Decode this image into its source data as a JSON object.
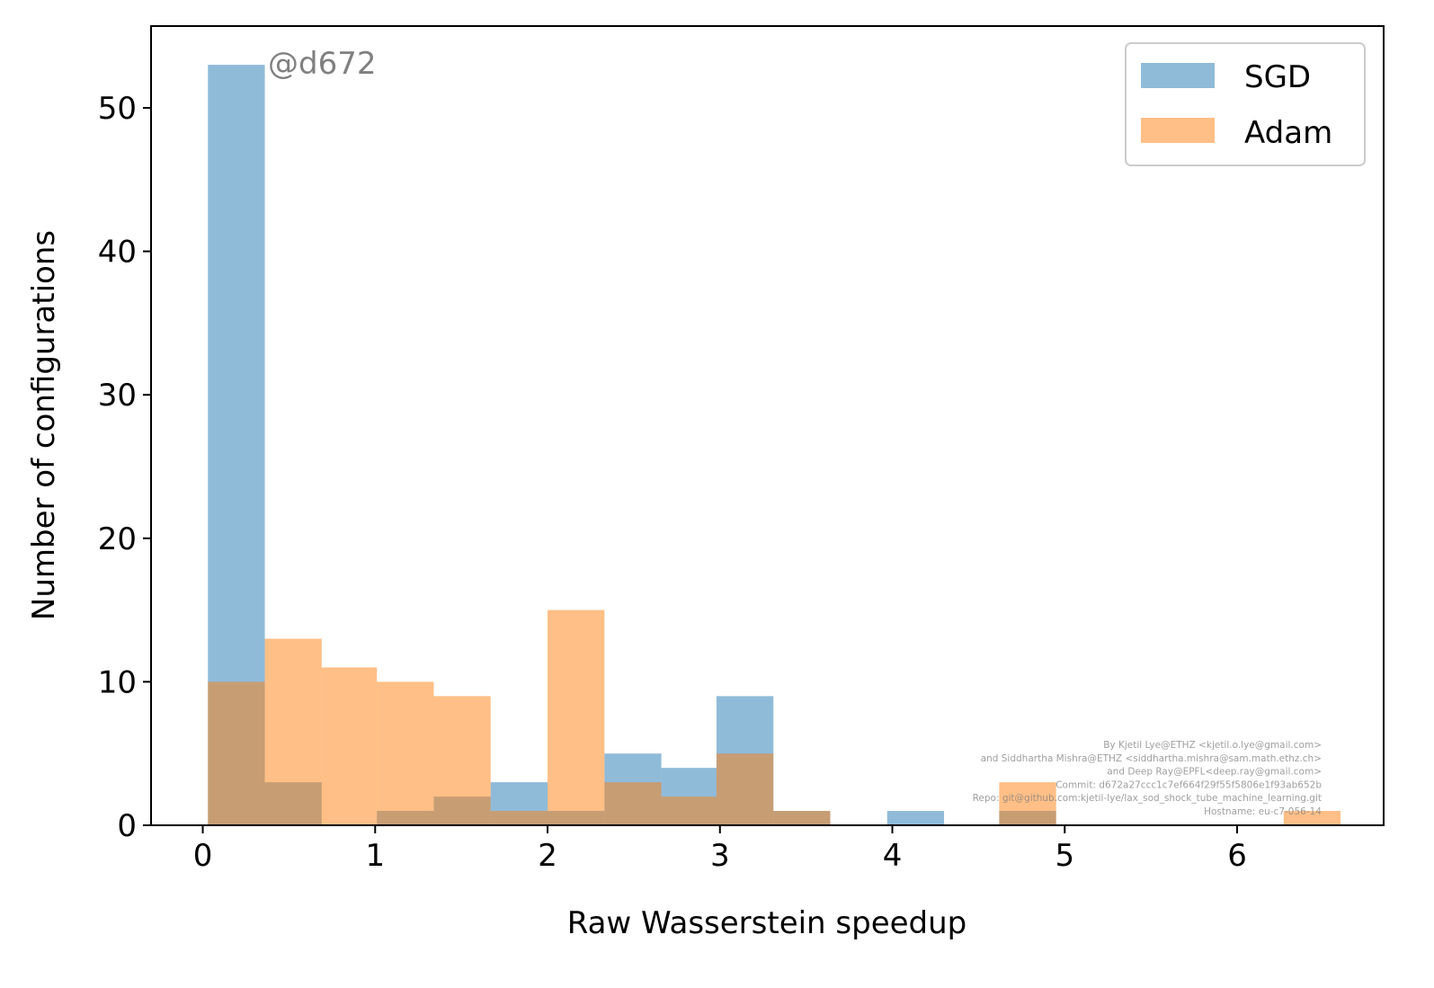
{
  "chart_data": {
    "type": "bar",
    "title": "",
    "xlabel": "Raw Wasserstein speedup",
    "ylabel": "Number of configurations",
    "xlim": [
      -0.3,
      6.85
    ],
    "ylim": [
      0,
      55.7
    ],
    "xticks": [
      "0",
      "1",
      "2",
      "3",
      "4",
      "5",
      "6"
    ],
    "yticks": [
      "0",
      "10",
      "20",
      "30",
      "40",
      "50"
    ],
    "grid": false,
    "legend_position": "top-right",
    "annotation": "@d672",
    "footer_lines": [
      "By Kjetil Lye@ETHZ <kjetil.o.lye@gmail.com>",
      "and Siddhartha Mishra@ETHZ <siddhartha.mishra@sam.math.ethz.ch>",
      "and Deep Ray@EPFL<deep.ray@gmail.com>",
      "Commit: d672a27ccc1c7ef664f29f55f5806e1f93ab652b",
      "Repo: git@github.com:kjetil-lye/lax_sod_shock_tube_machine_learning.git",
      "Hostname: eu-c7-056-14"
    ],
    "series": [
      {
        "name": "SGD",
        "color": "#1f77b4",
        "opacity": 0.5,
        "bins": [
          [
            0.03,
            0.36,
            53
          ],
          [
            0.36,
            0.69,
            3
          ],
          [
            0.69,
            1.01,
            0
          ],
          [
            1.01,
            1.34,
            1
          ],
          [
            1.34,
            1.67,
            2
          ],
          [
            1.67,
            2.0,
            3
          ],
          [
            2.0,
            2.33,
            1
          ],
          [
            2.33,
            2.66,
            5
          ],
          [
            2.66,
            2.98,
            4
          ],
          [
            2.98,
            3.31,
            9
          ],
          [
            3.31,
            3.64,
            1
          ],
          [
            3.97,
            4.3,
            1
          ],
          [
            4.62,
            4.95,
            1
          ]
        ]
      },
      {
        "name": "Adam",
        "color": "#ff7f0e",
        "opacity": 0.5,
        "bins": [
          [
            0.03,
            0.36,
            10
          ],
          [
            0.36,
            0.69,
            13
          ],
          [
            0.69,
            1.01,
            11
          ],
          [
            1.01,
            1.34,
            10
          ],
          [
            1.34,
            1.67,
            9
          ],
          [
            1.67,
            2.0,
            1
          ],
          [
            2.0,
            2.33,
            15
          ],
          [
            2.33,
            2.66,
            3
          ],
          [
            2.66,
            2.98,
            2
          ],
          [
            2.98,
            3.31,
            5
          ],
          [
            3.31,
            3.64,
            1
          ],
          [
            4.62,
            4.95,
            3
          ],
          [
            6.27,
            6.6,
            1
          ]
        ]
      }
    ]
  }
}
